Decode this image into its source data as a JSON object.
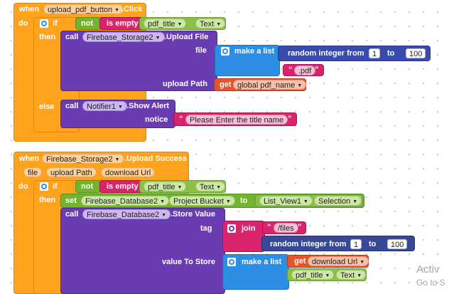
{
  "block1": {
    "when": "when",
    "component": "upload_pdf_button",
    "event": ".Click",
    "do": "do",
    "if": "if",
    "not": "not",
    "is_empty": "is empty",
    "pdf_title": "pdf_title",
    "text_prop": "Text",
    "then": "then",
    "call": "call",
    "storage": "Firebase_Storage2",
    "upload_method": ".Upload File",
    "file": "file",
    "make_a_list": "make a list",
    "random_integer_from": "random integer from",
    "rand_from": "1",
    "to": "to",
    "rand_to": "100",
    "quote_open": "“",
    "ext": ".pdf",
    "quote_close": "”",
    "upload_path": "upload Path",
    "get": "get",
    "global_var": "global pdf_name",
    "else": "else",
    "notifier": "Notifier1",
    "show_alert": ".Show Alert",
    "notice": "notice",
    "alert_text": "Please Enter the title name"
  },
  "block2": {
    "when": "when",
    "component": "Firebase_Storage2",
    "event": ".Upload Success",
    "params": [
      "file",
      "upload Path",
      "download Url"
    ],
    "do": "do",
    "if": "if",
    "not": "not",
    "is_empty": "is empty",
    "pdf_title": "pdf_title",
    "text_prop": "Text",
    "then": "then",
    "set": "set",
    "database": "Firebase_Database2",
    "project_bucket": "Project Bucket",
    "to": "to",
    "listview": "List_View1",
    "selection": "Selection",
    "call": "call",
    "store_value": ".Store Value",
    "tag": "tag",
    "join": "join",
    "quote_open": "“",
    "files": "/files",
    "quote_close": "”",
    "random_integer_from": "random integer from",
    "rand_from": "1",
    "rand_to": "100",
    "value_to_store": "value To Store",
    "make_a_list": "make a list",
    "get": "get",
    "download_url": "download Url"
  },
  "watermark": {
    "line1": "Activ",
    "line2": "Go to S"
  }
}
